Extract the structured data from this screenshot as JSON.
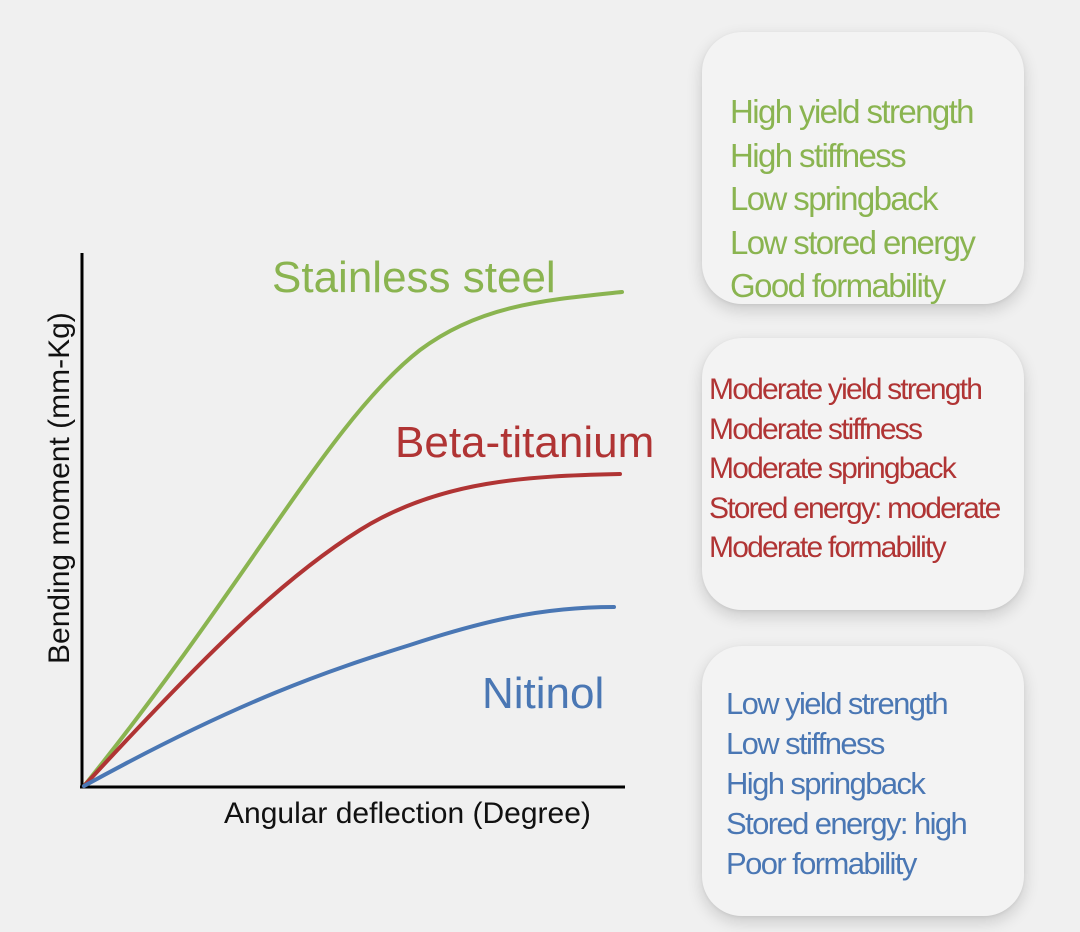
{
  "colors": {
    "stainless_steel": "#8ab450",
    "beta_titanium": "#b03434",
    "nitinol": "#4a77b4",
    "axis": "#000000"
  },
  "chart_data": {
    "type": "line",
    "xlabel": "Angular deflection (Degree)",
    "ylabel": "Bending moment (mm-Kg)",
    "grid": false,
    "series": [
      {
        "name": "Stainless steel",
        "shape": "steep rise then plateau, highest"
      },
      {
        "name": "Beta-titanium",
        "shape": "moderate rise then plateau, middle"
      },
      {
        "name": "Nitinol",
        "shape": "gentle rise then plateau, lowest"
      }
    ]
  },
  "properties": {
    "stainless_steel": [
      "High yield strength",
      "High stiffness",
      "Low springback",
      "Low stored energy",
      "Good formability"
    ],
    "beta_titanium": [
      "Moderate yield strength",
      "Moderate stiffness",
      "Moderate springback",
      "Stored energy: moderate",
      "Moderate formability"
    ],
    "nitinol": [
      "Low yield strength",
      "Low stiffness",
      "High springback",
      "Stored energy: high",
      "Poor formability"
    ]
  }
}
